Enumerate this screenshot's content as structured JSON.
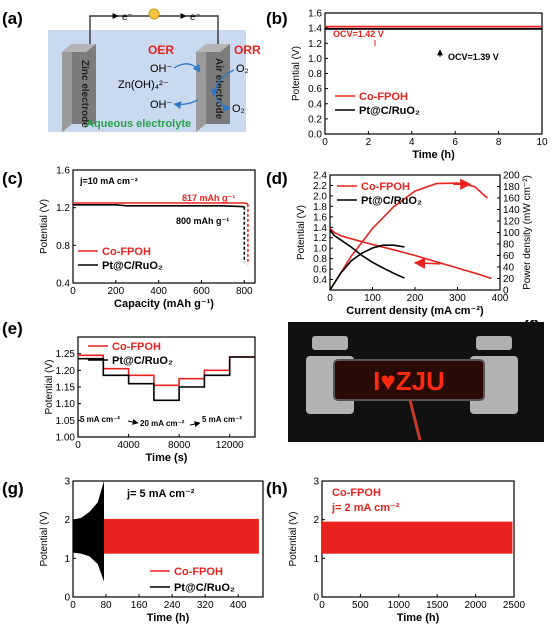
{
  "panel_letters": [
    "(a)",
    "(b)",
    "(c)",
    "(d)",
    "(e)",
    "(f)",
    "(g)",
    "(h)"
  ],
  "schematic": {
    "electron_left": "e⁻",
    "electron_right": "e⁻",
    "oer": "OER",
    "orr": "ORR",
    "oh_1": "OH⁻",
    "zincate": "Zn(OH)₄²⁻",
    "oh_2": "OH⁻",
    "o2_top": "O₂",
    "o2_bottom": "O₂",
    "zinc_electrode": "Zinc electrode",
    "air_electrode": "Air electrode",
    "electrolyte": "Aqueous electrolyte",
    "colors": {
      "bg": "#c9d9ef",
      "plate": "#8a8a8a",
      "oer": "#e8231d",
      "orr": "#e8231d",
      "electrolyte": "#2aa04a",
      "arrow": "#2f78c8"
    }
  },
  "photo": {
    "display_text": "I♥ZJU",
    "icon": "led-badge-photo",
    "colors": {
      "led": "#ff2a12",
      "bg": "#111111"
    }
  },
  "colors": {
    "co_fpoh": "#e8231d",
    "ref": "#000000"
  },
  "chart_data": [
    {
      "id": "b",
      "type": "line",
      "xlabel": "Time (h)",
      "ylabel": "Potential (V)",
      "xlim": [
        0,
        10
      ],
      "ylim": [
        0.0,
        1.6
      ],
      "xticks": [
        0,
        2,
        4,
        6,
        8,
        10
      ],
      "yticks": [
        0.0,
        0.2,
        0.4,
        0.6,
        0.8,
        1.0,
        1.2,
        1.4,
        1.6
      ],
      "ytick_labels": [
        "0.0",
        "0.2",
        "0.4",
        "0.6",
        "0.8",
        "1.0",
        "1.2",
        "1.4",
        "1.6"
      ],
      "legend": {
        "position": "lower-left",
        "entries": [
          "Co-FPOH",
          "Pt@C/RuO₂"
        ]
      },
      "annotations": [
        "OCV=1.42 V",
        "OCV=1.39 V"
      ],
      "series": [
        {
          "name": "Co-FPOH",
          "color": "#e8231d",
          "x": [
            0,
            10
          ],
          "y": [
            1.42,
            1.42
          ]
        },
        {
          "name": "Pt@C/RuO₂",
          "color": "#000000",
          "x": [
            0,
            10
          ],
          "y": [
            1.39,
            1.39
          ]
        }
      ]
    },
    {
      "id": "c",
      "type": "line",
      "xlabel": "Capacity (mAh g⁻¹)",
      "ylabel": "Potential (V)",
      "xlim": [
        0,
        850
      ],
      "ylim": [
        0.4,
        1.6
      ],
      "xticks": [
        0,
        200,
        400,
        600,
        800
      ],
      "yticks": [
        0.4,
        0.8,
        1.2,
        1.6
      ],
      "ytick_labels": [
        "0.4",
        "0.8",
        "1.2",
        "1.6"
      ],
      "legend": {
        "position": "lower-left",
        "entries": [
          "Co-FPOH",
          "Pt@C/RuO₂"
        ]
      },
      "annotations": [
        "j=10 mA cm⁻²",
        "817 mAh g⁻¹",
        "800 mAh g⁻¹"
      ],
      "series": [
        {
          "name": "Co-FPOH",
          "color": "#e8231d",
          "dashed_end": true,
          "x": [
            0,
            100,
            200,
            300,
            400,
            500,
            600,
            700,
            800,
            817,
            817
          ],
          "y": [
            1.25,
            1.25,
            1.25,
            1.25,
            1.25,
            1.25,
            1.25,
            1.25,
            1.25,
            1.24,
            0.6
          ]
        },
        {
          "name": "Pt@C/RuO₂",
          "color": "#000000",
          "dashed_end": true,
          "x": [
            0,
            100,
            200,
            250,
            300,
            400,
            500,
            600,
            700,
            800,
            800
          ],
          "y": [
            1.23,
            1.23,
            1.23,
            1.22,
            1.22,
            1.22,
            1.22,
            1.22,
            1.22,
            1.21,
            0.62
          ]
        }
      ]
    },
    {
      "id": "d",
      "type": "line",
      "xlabel": "Current density (mA cm⁻²)",
      "ylabel": "Potential (V)",
      "ylabel_right": "Power density (mW cm⁻²)",
      "xlim": [
        0,
        400
      ],
      "ylim": [
        0.2,
        2.4
      ],
      "ylim_right": [
        0,
        200
      ],
      "xticks": [
        0,
        100,
        200,
        300,
        400
      ],
      "yticks": [
        0.4,
        0.6,
        0.8,
        1.0,
        1.2,
        1.4,
        1.6,
        1.8,
        2.0,
        2.2,
        2.4
      ],
      "ytick_labels": [
        "0.4",
        "0.6",
        "0.8",
        "1.0",
        "1.2",
        "1.4",
        "1.6",
        "1.8",
        "2.0",
        "2.2",
        "2.4"
      ],
      "yticks_right": [
        0,
        20,
        40,
        60,
        80,
        100,
        120,
        140,
        160,
        180,
        200
      ],
      "legend": {
        "position": "top-left",
        "entries": [
          "Co-FPOH",
          "Pt@C/RuO₂"
        ]
      },
      "series": [
        {
          "name": "Co-FPOH",
          "color": "#e8231d",
          "kind": "polarization",
          "x": [
            0,
            10,
            25,
            50,
            100,
            150,
            200,
            250,
            300,
            350,
            380
          ],
          "y": [
            1.38,
            1.3,
            1.24,
            1.18,
            1.07,
            0.97,
            0.86,
            0.74,
            0.62,
            0.5,
            0.42
          ]
        },
        {
          "name": "Co-FPOH",
          "color": "#e8231d",
          "kind": "power",
          "axis": "right",
          "x": [
            0,
            50,
            100,
            150,
            200,
            250,
            300,
            340,
            370
          ],
          "y": [
            0,
            59,
            107,
            145,
            172,
            185,
            186,
            180,
            160
          ]
        },
        {
          "name": "Pt@C/RuO₂",
          "color": "#000000",
          "kind": "polarization",
          "x": [
            0,
            10,
            25,
            50,
            75,
            100,
            125,
            150,
            175
          ],
          "y": [
            1.35,
            1.24,
            1.16,
            1.02,
            0.86,
            0.73,
            0.62,
            0.52,
            0.43
          ]
        },
        {
          "name": "Pt@C/RuO₂",
          "color": "#000000",
          "kind": "power",
          "axis": "right",
          "x": [
            0,
            25,
            50,
            75,
            100,
            125,
            150,
            175
          ],
          "y": [
            0,
            29,
            51,
            64,
            73,
            78,
            78,
            75
          ]
        }
      ]
    },
    {
      "id": "e",
      "type": "line",
      "xlabel": "Time (s)",
      "ylabel": "Potential (V)",
      "xlim": [
        0,
        14000
      ],
      "ylim": [
        1.0,
        1.3
      ],
      "xticks": [
        0,
        4000,
        8000,
        12000
      ],
      "yticks": [
        1.0,
        1.05,
        1.1,
        1.15,
        1.2,
        1.25
      ],
      "ytick_labels": [
        "1.00",
        "1.05",
        "1.10",
        "1.15",
        "1.20",
        "1.25"
      ],
      "legend": {
        "position": "top-left",
        "entries": [
          "Co-FPOH",
          "Pt@C/RuO₂"
        ]
      },
      "annotations": [
        "5 mA cm⁻²",
        "20 mA cm⁻²",
        "5 mA cm⁻²"
      ],
      "series": [
        {
          "name": "Co-FPOH",
          "color": "#e8231d",
          "x": [
            0,
            2000,
            2000,
            4000,
            4000,
            6000,
            6000,
            8000,
            8000,
            10000,
            10000,
            12000,
            12000,
            14000
          ],
          "y": [
            1.245,
            1.245,
            1.205,
            1.205,
            1.185,
            1.185,
            1.155,
            1.155,
            1.175,
            1.175,
            1.2,
            1.2,
            1.24,
            1.24
          ]
        },
        {
          "name": "Pt@C/RuO₂",
          "color": "#000000",
          "x": [
            0,
            2000,
            2000,
            4000,
            4000,
            6000,
            6000,
            8000,
            8000,
            10000,
            10000,
            12000,
            12000,
            14000
          ],
          "y": [
            1.235,
            1.235,
            1.185,
            1.185,
            1.16,
            1.16,
            1.11,
            1.11,
            1.15,
            1.15,
            1.185,
            1.185,
            1.24,
            1.24
          ]
        }
      ]
    },
    {
      "id": "g",
      "type": "area",
      "xlabel": "Time (h)",
      "ylabel": "Potential (V)",
      "xlim": [
        0,
        460
      ],
      "ylim": [
        0,
        3
      ],
      "xticks": [
        0,
        80,
        160,
        240,
        320,
        400
      ],
      "yticks": [
        0,
        1,
        2,
        3
      ],
      "ytick_labels": [
        "0",
        "1",
        "2",
        "3"
      ],
      "legend": {
        "position": "lower-right",
        "entries": [
          "Co-FPOH",
          "Pt@C/RuO₂"
        ]
      },
      "annotations": [
        "j= 5 mA cm⁻²"
      ],
      "series": [
        {
          "name": "Co-FPOH",
          "color": "#e8231d",
          "x_range": [
            75,
            450
          ],
          "y_low": 1.12,
          "y_high": 2.02
        },
        {
          "name": "Pt@C/RuO₂",
          "color": "#000000",
          "x_range": [
            0,
            75
          ],
          "x": [
            0,
            20,
            40,
            60,
            75
          ],
          "y_low": [
            1.15,
            1.12,
            1.05,
            0.85,
            0.4
          ],
          "y_high": [
            2.0,
            2.05,
            2.2,
            2.45,
            3.0
          ]
        }
      ]
    },
    {
      "id": "h",
      "type": "area",
      "xlabel": "Time (h)",
      "ylabel": "Potential (V)",
      "xlim": [
        0,
        2500
      ],
      "ylim": [
        0,
        3
      ],
      "xticks": [
        0,
        500,
        1000,
        1500,
        2000,
        2500
      ],
      "yticks": [
        0,
        1,
        2,
        3
      ],
      "ytick_labels": [
        "0",
        "1",
        "2",
        "3"
      ],
      "legend": {
        "position": "top-left",
        "entries": [
          "Co-FPOH"
        ]
      },
      "annotations": [
        "j= 2 mA cm⁻²"
      ],
      "series": [
        {
          "name": "Co-FPOH",
          "color": "#e8231d",
          "x_range": [
            0,
            2480
          ],
          "y_low": 1.12,
          "y_high": 1.95
        }
      ]
    }
  ]
}
